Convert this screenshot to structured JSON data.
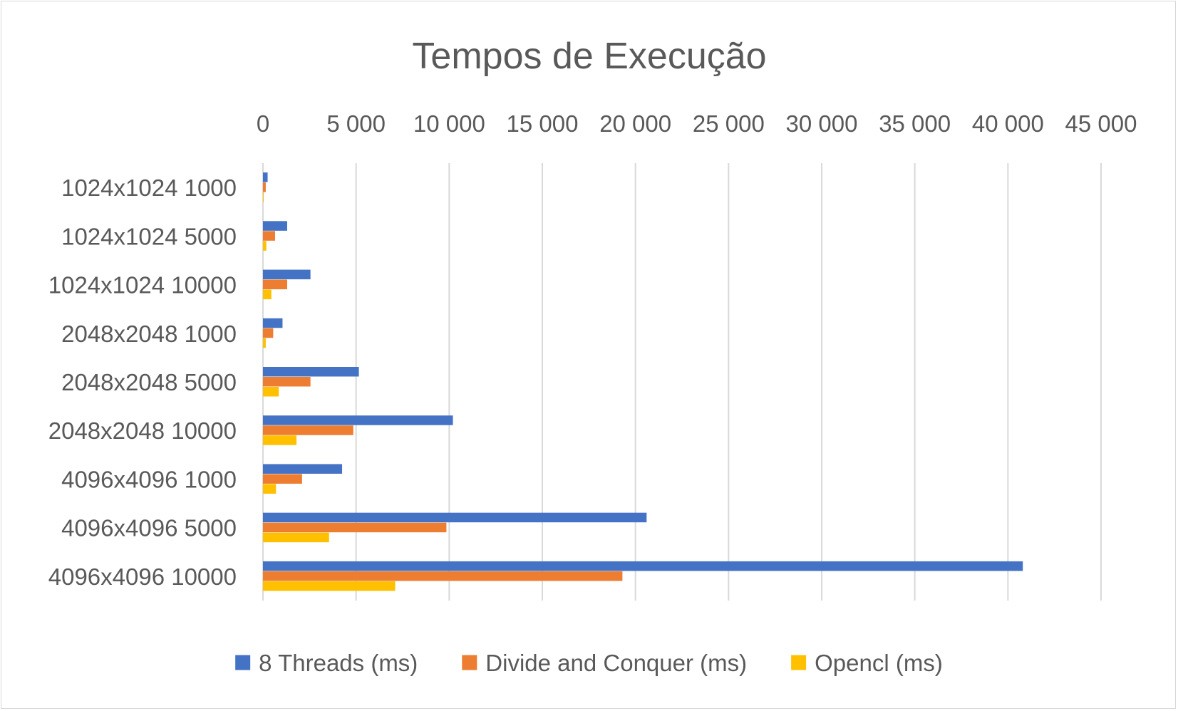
{
  "chart_data": {
    "type": "bar",
    "orientation": "horizontal",
    "title": "Tempos de Execução",
    "xlabel": "",
    "ylabel": "",
    "x_axis_position": "top",
    "xlim": [
      0,
      45000
    ],
    "x_ticks": [
      0,
      5000,
      10000,
      15000,
      20000,
      25000,
      30000,
      35000,
      40000,
      45000
    ],
    "x_tick_labels": [
      "0",
      "5 000",
      "10 000",
      "15 000",
      "20 000",
      "25 000",
      "30 000",
      "35 000",
      "40 000",
      "45 000"
    ],
    "grid": true,
    "legend_position": "bottom",
    "categories": [
      "1024x1024 1000",
      "1024x1024 5000",
      "1024x1024 10000",
      "2048x2048 1000",
      "2048x2048 5000",
      "2048x2048 10000",
      "4096x4096 1000",
      "4096x4096 5000",
      "4096x4096 10000"
    ],
    "series": [
      {
        "name": "8 Threads (ms)",
        "color": "#4472C4",
        "values": [
          250,
          1300,
          2550,
          1050,
          5150,
          10200,
          4250,
          20600,
          40800
        ]
      },
      {
        "name": "Divide and Conquer (ms)",
        "color": "#ED7D31",
        "values": [
          150,
          650,
          1300,
          550,
          2550,
          4850,
          2100,
          9850,
          19300
        ]
      },
      {
        "name": "Opencl (ms)",
        "color": "#FFC000",
        "values": [
          40,
          180,
          450,
          150,
          850,
          1800,
          700,
          3550,
          7100
        ]
      }
    ]
  }
}
